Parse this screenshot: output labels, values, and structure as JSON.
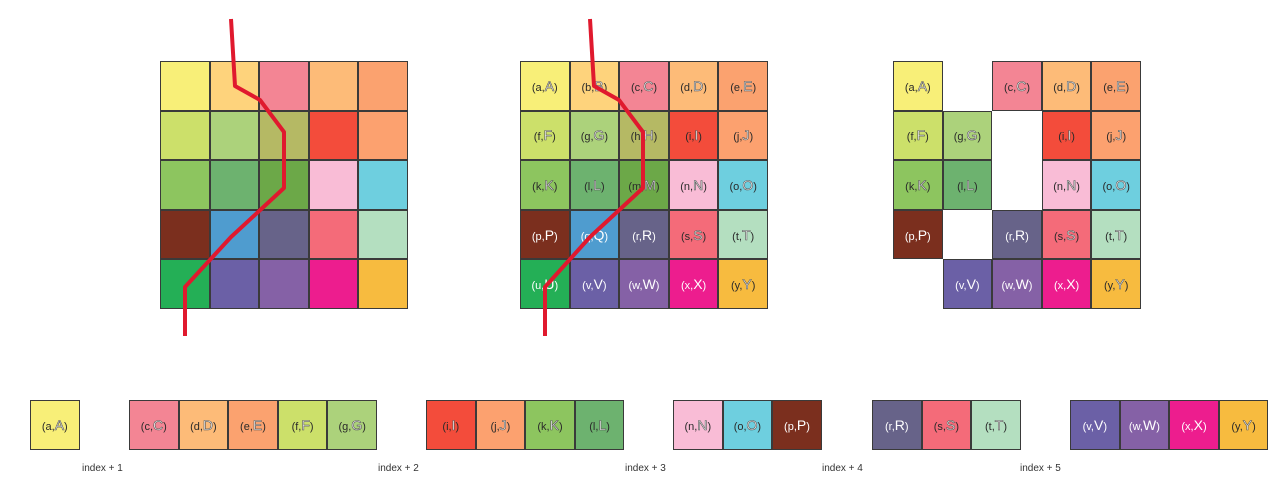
{
  "colors": {
    "a": "#f8ef78",
    "b": "#fed37c",
    "c": "#f38594",
    "d": "#fdbb78",
    "e": "#fba26f",
    "f": "#cce06a",
    "g": "#acd27b",
    "h": "#b5b964",
    "i": "#f34c3b",
    "j": "#fca16f",
    "k": "#8dc55f",
    "l": "#6db26f",
    "m": "#6ca848",
    "n": "#f9bcd6",
    "o": "#6ecfdf",
    "p": "#7b2f1e",
    "q": "#4f9ccf",
    "r": "#676389",
    "s": "#f46b79",
    "t": "#b4dfc0",
    "u": "#24af56",
    "v": "#6b60a6",
    "w": "#8561a6",
    "x": "#ed1d8e",
    "y": "#f7bb3f",
    "seam": "#e0192e"
  },
  "dark_cells": [
    "p",
    "q",
    "r",
    "u",
    "v",
    "w",
    "x"
  ],
  "grid_colors_only": [
    [
      "a",
      "b",
      "c",
      "d",
      "e"
    ],
    [
      "f",
      "g",
      "h",
      "i",
      "j"
    ],
    [
      "k",
      "l",
      "m",
      "n",
      "o"
    ],
    [
      "p",
      "q",
      "r",
      "s",
      "t"
    ],
    [
      "u",
      "v",
      "w",
      "x",
      "y"
    ]
  ],
  "grid_labeled": {
    "labels": [
      [
        [
          "(a,",
          "A",
          ")"
        ],
        [
          "(b,",
          "B",
          ")"
        ],
        [
          "(c,",
          "C",
          ")"
        ],
        [
          "(d,",
          "D",
          ")"
        ],
        [
          "(e,",
          "E",
          ")"
        ]
      ],
      [
        [
          "(f,",
          "F",
          ")"
        ],
        [
          "(g,",
          "G",
          ")"
        ],
        [
          "(h,",
          "H",
          ")"
        ],
        [
          "(i,",
          "I",
          ")"
        ],
        [
          "(j,",
          "J",
          ")"
        ]
      ],
      [
        [
          "(k,",
          "K",
          ")"
        ],
        [
          "(l,",
          "L",
          ")"
        ],
        [
          "(m,",
          "M",
          ")"
        ],
        [
          "(n,",
          "N",
          ")"
        ],
        [
          "(o,",
          "O",
          ")"
        ]
      ],
      [
        [
          "(p,",
          "P",
          ")"
        ],
        [
          "(q,",
          "Q",
          ")"
        ],
        [
          "(r,",
          "R",
          ")"
        ],
        [
          "(s,",
          "S",
          ")"
        ],
        [
          "(t,",
          "T",
          ")"
        ]
      ],
      [
        [
          "(u,",
          "U",
          ")"
        ],
        [
          "(v,",
          "V",
          ")"
        ],
        [
          "(w,",
          "W",
          ")"
        ],
        [
          "(x,",
          "X",
          ")"
        ],
        [
          "(y,",
          "Y",
          ")"
        ]
      ]
    ]
  },
  "grid_seam_removed": {
    "rows": [
      [
        "a",
        null,
        "c",
        "d",
        "e"
      ],
      [
        "f",
        "g",
        null,
        "i",
        "j"
      ],
      [
        "k",
        "l",
        null,
        "n",
        "o"
      ],
      [
        "p",
        null,
        "r",
        "s",
        "t"
      ],
      [
        null,
        "v",
        "w",
        "x",
        "y"
      ]
    ]
  },
  "strips": [
    {
      "index_label": "index + 1",
      "cells": [
        "a"
      ]
    },
    {
      "index_label": "index + 2",
      "cells": [
        "c",
        "d",
        "e",
        "f",
        "g"
      ]
    },
    {
      "index_label": "index + 3",
      "cells": [
        "i",
        "j",
        "k",
        "l"
      ]
    },
    {
      "index_label": "index + 4",
      "cells": [
        "n",
        "o",
        "p"
      ]
    },
    {
      "index_label": "index + 5",
      "cells": [
        "r",
        "s",
        "t"
      ]
    },
    {
      "index_label": "",
      "cells": [
        "v",
        "w",
        "x",
        "y"
      ]
    }
  ]
}
